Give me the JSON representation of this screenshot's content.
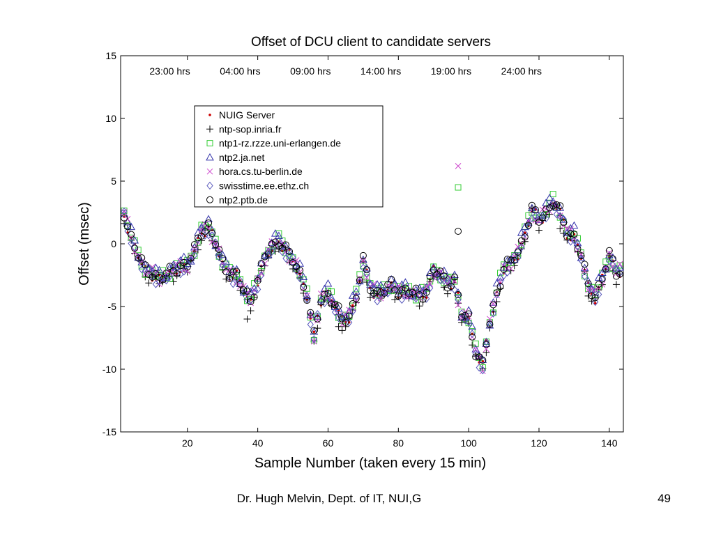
{
  "slide": {
    "footer_author": "Dr. Hugh Melvin, Dept. of IT, NUI,G",
    "page_number": "49"
  },
  "chart_data": {
    "type": "scatter",
    "title": "Offset of DCU client  to candidate servers",
    "xlabel": "Sample Number (taken every 15 min)",
    "ylabel": "Offset (msec)",
    "xlim": [
      1,
      144
    ],
    "ylim": [
      -15,
      15
    ],
    "xticks": [
      20,
      40,
      60,
      80,
      100,
      120,
      140
    ],
    "yticks": [
      -15,
      -10,
      -5,
      0,
      5,
      10,
      15
    ],
    "grid": false,
    "legend_position": "upper-left",
    "time_annotations": [
      {
        "label": "23:00 hrs",
        "x": 15
      },
      {
        "label": "04:00 hrs",
        "x": 35
      },
      {
        "label": "09:00 hrs",
        "x": 55
      },
      {
        "label": "14:00 hrs",
        "x": 75
      },
      {
        "label": "19:00 hrs",
        "x": 95
      },
      {
        "label": "24:00 hrs",
        "x": 115
      }
    ],
    "base_curve": {
      "x": [
        2,
        4,
        6,
        8,
        10,
        12,
        14,
        16,
        18,
        20,
        22,
        24,
        26,
        28,
        30,
        32,
        34,
        36,
        38,
        40,
        42,
        44,
        46,
        48,
        50,
        52,
        54,
        56,
        58,
        60,
        62,
        64,
        66,
        68,
        70,
        72,
        74,
        76,
        78,
        80,
        82,
        84,
        86,
        88,
        90,
        92,
        94,
        96,
        98,
        100,
        102,
        104,
        106,
        108,
        110,
        112,
        114,
        116,
        118,
        120,
        122,
        124,
        126,
        128,
        130,
        132,
        134,
        136,
        138,
        140,
        142,
        144
      ],
      "y": [
        2.3,
        0.5,
        -1.0,
        -2.2,
        -2.4,
        -2.8,
        -2.6,
        -2.2,
        -1.8,
        -1.8,
        -0.6,
        1.0,
        1.3,
        0.0,
        -1.6,
        -2.4,
        -2.6,
        -3.8,
        -4.6,
        -3.0,
        -1.2,
        -0.3,
        0.2,
        -0.6,
        -1.4,
        -2.4,
        -4.2,
        -7.5,
        -4.5,
        -4.0,
        -5.0,
        -6.2,
        -5.8,
        -4.2,
        -1.5,
        -3.5,
        -4.0,
        -3.8,
        -3.4,
        -3.8,
        -3.8,
        -4.0,
        -4.2,
        -3.8,
        -2.2,
        -2.6,
        -3.2,
        -3.0,
        -5.8,
        -6.0,
        -8.6,
        -9.8,
        -6.4,
        -4.0,
        -2.0,
        -1.6,
        -0.8,
        0.8,
        2.6,
        1.8,
        2.5,
        3.3,
        2.4,
        0.8,
        0.6,
        -1.0,
        -3.5,
        -4.2,
        -2.8,
        -1.0,
        -2.4,
        -1.8
      ]
    },
    "series": [
      {
        "name": "NUIG Server",
        "marker": "dot",
        "color": "#cc0000",
        "offset": 0.0
      },
      {
        "name": "ntp-sop.inria.fr",
        "marker": "plus",
        "color": "#000000",
        "offset": -0.3
      },
      {
        "name": "ntp1-rz.rzze.uni-erlangen.de",
        "marker": "square",
        "color": "#33cc33",
        "offset": 0.15
      },
      {
        "name": "ntp2.ja.net",
        "marker": "triangle",
        "color": "#3333aa",
        "offset": 0.35
      },
      {
        "name": "hora.cs.tu-berlin.de",
        "marker": "x",
        "color": "#cc44cc",
        "offset": 0.05
      },
      {
        "name": "swisstime.ee.ethz.ch",
        "marker": "diamond",
        "color": "#5555bb",
        "offset": -0.15
      },
      {
        "name": "ntp2.ptb.de",
        "marker": "circle",
        "color": "#000000",
        "offset": 0.1
      }
    ],
    "outliers": [
      {
        "series": 4,
        "x": 97,
        "y": 6.2
      },
      {
        "series": 2,
        "x": 97,
        "y": 4.5
      },
      {
        "series": 6,
        "x": 97,
        "y": 1.0
      },
      {
        "series": 1,
        "x": 126,
        "y": 1.2
      },
      {
        "series": 1,
        "x": 37,
        "y": -6.0
      },
      {
        "series": 1,
        "x": 63,
        "y": -6.6
      }
    ]
  }
}
